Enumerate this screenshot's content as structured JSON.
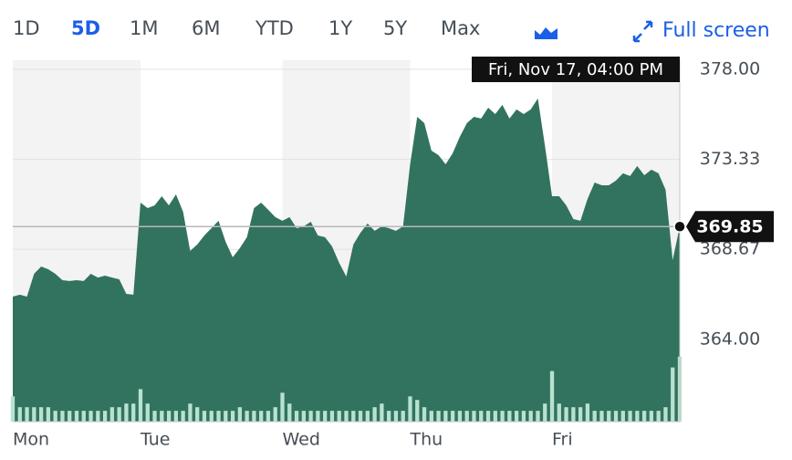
{
  "toolbar": {
    "ranges": [
      "1D",
      "5D",
      "1M",
      "6M",
      "YTD",
      "1Y",
      "5Y",
      "Max"
    ],
    "selected": 1,
    "full_screen": "Full screen"
  },
  "chart_data": {
    "type": "area",
    "color": "#32735f",
    "volume_color": "#b8e2d0",
    "crosshair_label": "Fri, Nov 17, 04:00 PM",
    "last_price": 369.85,
    "xlim": [
      0,
      94
    ],
    "xticks": [
      {
        "value": 0,
        "label": "Mon"
      },
      {
        "value": 18,
        "label": "Tue"
      },
      {
        "value": 38,
        "label": "Wed"
      },
      {
        "value": 56,
        "label": "Thu"
      },
      {
        "value": 76,
        "label": "Fri"
      }
    ],
    "ylim": [
      359.74,
      378.47
    ],
    "yticks": [
      {
        "value": 364,
        "label": "364.00"
      },
      368.67,
      373.33,
      {
        "value": 378,
        "label": "378.00"
      }
    ],
    "grid": true,
    "y2lim": [
      0,
      100
    ],
    "values": [
      366.22,
      366.32,
      366.22,
      367.4,
      367.78,
      367.64,
      367.4,
      367.07,
      367.03,
      367.07,
      367.03,
      367.4,
      367.21,
      367.31,
      367.21,
      367.12,
      366.36,
      366.32,
      371.09,
      370.81,
      370.95,
      371.42,
      370.95,
      371.52,
      370.62,
      368.59,
      368.92,
      369.39,
      369.77,
      370.15,
      369.06,
      368.26,
      368.73,
      369.3,
      370.81,
      371.09,
      370.72,
      370.34,
      370.15,
      370.34,
      369.77,
      369.86,
      370.1,
      369.39,
      369.3,
      368.82,
      367.97,
      367.26,
      368.92,
      369.53,
      370.01,
      369.63,
      369.86,
      369.77,
      369.63,
      369.86,
      373.08,
      375.54,
      375.21,
      373.79,
      373.55,
      373.08,
      373.65,
      374.5,
      375.21,
      375.54,
      375.45,
      376.01,
      375.68,
      376.16,
      375.45,
      375.92,
      375.68,
      375.92,
      376.49,
      374.03,
      371.42,
      371.42,
      370.95,
      370.24,
      370.15,
      371.28,
      372.13,
      371.99,
      371.99,
      372.23,
      372.61,
      372.47,
      372.99,
      372.51,
      372.8,
      372.61,
      371.76,
      368.11,
      369.85
    ],
    "volume": [
      7,
      4,
      4,
      4,
      4,
      4,
      3,
      3,
      3,
      3,
      3,
      3,
      3,
      3,
      4,
      4,
      5,
      5,
      9,
      5,
      3,
      3,
      3,
      3,
      3,
      5,
      4,
      3,
      3,
      3,
      3,
      3,
      4,
      3,
      3,
      3,
      3,
      4,
      8,
      5,
      3,
      3,
      3,
      3,
      3,
      3,
      3,
      3,
      3,
      3,
      3,
      4,
      5,
      3,
      3,
      3,
      7,
      6,
      4,
      3,
      3,
      3,
      3,
      3,
      3,
      3,
      3,
      3,
      3,
      3,
      3,
      3,
      3,
      3,
      3,
      5,
      14,
      5,
      4,
      4,
      4,
      5,
      3,
      3,
      3,
      3,
      3,
      3,
      3,
      3,
      3,
      3,
      4,
      15,
      18
    ]
  }
}
